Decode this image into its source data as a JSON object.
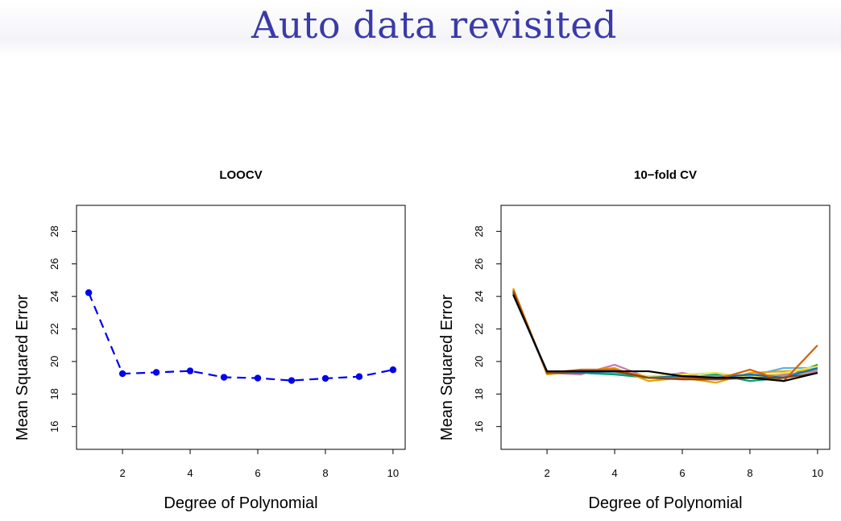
{
  "slide": {
    "title": "Auto data revisited"
  },
  "chart_data": [
    {
      "type": "line",
      "title": "LOOCV",
      "xlabel": "Degree of Polynomial",
      "ylabel": "Mean Squared Error",
      "xlim": [
        1,
        10
      ],
      "ylim": [
        15,
        29.5
      ],
      "xticks": [
        2,
        4,
        6,
        8,
        10
      ],
      "yticks": [
        16,
        18,
        20,
        22,
        24,
        26,
        28
      ],
      "grid": false,
      "markers": true,
      "series": [
        {
          "color": "#0000ee",
          "x": [
            1,
            2,
            3,
            4,
            5,
            6,
            7,
            8,
            9,
            10
          ],
          "values": [
            24.23,
            19.25,
            19.33,
            19.42,
            19.03,
            18.98,
            18.83,
            18.96,
            19.07,
            19.49
          ]
        }
      ]
    },
    {
      "type": "line",
      "title": "10−fold CV",
      "xlabel": "Degree of Polynomial",
      "ylabel": "Mean Squared Error",
      "xlim": [
        1,
        10
      ],
      "ylim": [
        15,
        29.5
      ],
      "xticks": [
        2,
        4,
        6,
        8,
        10
      ],
      "yticks": [
        16,
        18,
        20,
        22,
        24,
        26,
        28
      ],
      "grid": false,
      "markers": false,
      "series": [
        {
          "color": "#56b4e9",
          "x": [
            1,
            2,
            3,
            4,
            5,
            6,
            7,
            8,
            9,
            10
          ],
          "values": [
            24.3,
            19.3,
            19.3,
            19.3,
            19.0,
            19.1,
            19.0,
            19.1,
            19.6,
            19.6
          ]
        },
        {
          "color": "#009e73",
          "x": [
            1,
            2,
            3,
            4,
            5,
            6,
            7,
            8,
            9,
            10
          ],
          "values": [
            24.2,
            19.3,
            19.3,
            19.2,
            19.0,
            19.0,
            19.2,
            18.8,
            19.0,
            19.8
          ]
        },
        {
          "color": "#cc79a7",
          "x": [
            1,
            2,
            3,
            4,
            5,
            6,
            7,
            8,
            9,
            10
          ],
          "values": [
            24.4,
            19.3,
            19.2,
            19.8,
            19.0,
            19.3,
            18.9,
            19.0,
            19.2,
            19.4
          ]
        },
        {
          "color": "#e69f00",
          "x": [
            1,
            2,
            3,
            4,
            5,
            6,
            7,
            8,
            9,
            10
          ],
          "values": [
            24.5,
            19.2,
            19.4,
            19.6,
            18.8,
            19.0,
            18.7,
            19.3,
            19.4,
            19.5
          ]
        },
        {
          "color": "#f0e442",
          "x": [
            1,
            2,
            3,
            4,
            5,
            6,
            7,
            8,
            9,
            10
          ],
          "values": [
            24.3,
            19.3,
            19.3,
            19.4,
            19.1,
            19.2,
            19.3,
            19.0,
            19.3,
            19.7
          ]
        },
        {
          "color": "#999999",
          "x": [
            1,
            2,
            3,
            4,
            5,
            6,
            7,
            8,
            9,
            10
          ],
          "values": [
            24.2,
            19.3,
            19.3,
            19.5,
            19.0,
            19.1,
            19.1,
            19.2,
            19.1,
            19.5
          ]
        },
        {
          "color": "#0072b2",
          "x": [
            1,
            2,
            3,
            4,
            5,
            6,
            7,
            8,
            9,
            10
          ],
          "values": [
            24.2,
            19.3,
            19.3,
            19.4,
            19.0,
            19.1,
            19.0,
            19.2,
            19.0,
            19.6
          ]
        },
        {
          "color": "#d55e00",
          "x": [
            1,
            2,
            3,
            4,
            5,
            6,
            7,
            8,
            9,
            10
          ],
          "values": [
            24.4,
            19.3,
            19.5,
            19.5,
            19.0,
            19.0,
            18.9,
            19.5,
            18.8,
            21.0
          ]
        },
        {
          "color": "#8b4513",
          "x": [
            1,
            2,
            3,
            4,
            5,
            6,
            7,
            8,
            9,
            10
          ],
          "values": [
            24.3,
            19.3,
            19.4,
            19.4,
            19.0,
            18.9,
            18.9,
            19.0,
            19.0,
            19.3
          ]
        },
        {
          "color": "#000000",
          "x": [
            1,
            2,
            3,
            4,
            5,
            6,
            7,
            8,
            9,
            10
          ],
          "values": [
            24.1,
            19.4,
            19.4,
            19.4,
            19.4,
            19.1,
            19.0,
            19.0,
            18.8,
            19.3
          ]
        }
      ]
    }
  ]
}
